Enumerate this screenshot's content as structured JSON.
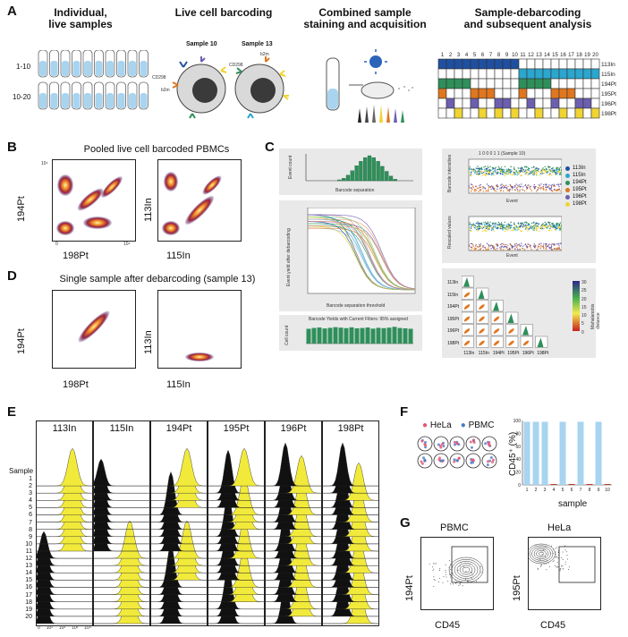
{
  "panels": {
    "A": "A",
    "B": "B",
    "C": "C",
    "D": "D",
    "E": "E",
    "F": "F",
    "G": "G"
  },
  "panel_a": {
    "titles": [
      "Individual,\nlive samples",
      "Live cell barcoding",
      "Combined sample\nstaining and acquisition",
      "Sample-debarcoding\nand subsequent analysis"
    ],
    "row_labels": [
      "1-10",
      "10-20"
    ],
    "sample_labels": [
      "Sample 10",
      "Sample 13"
    ],
    "marker_labels": {
      "cd298": "CD298",
      "b2m": "b2m"
    },
    "grid_columns": [
      "1",
      "2",
      "3",
      "4",
      "5",
      "6",
      "7",
      "8",
      "9",
      "10",
      "11",
      "12",
      "13",
      "14",
      "15",
      "16",
      "17",
      "18",
      "19",
      "20"
    ],
    "grid_rows": [
      "113In",
      "115In",
      "194Pt",
      "195Pt",
      "196Pt",
      "198Pt"
    ],
    "colors": {
      "blue": "#1f4fa0",
      "cyan": "#2ba6cf",
      "green": "#2f8f5a",
      "orange": "#e0761f",
      "purple": "#6c5fb0",
      "yellow": "#f0d431"
    }
  },
  "panel_b": {
    "title": "Pooled live cell barcoded PBMCs",
    "xlabels": [
      "198Pt",
      "115In"
    ],
    "ylabels": [
      "194Pt",
      "113In"
    ],
    "ticks": [
      "0",
      "10¹",
      "10²",
      "10³",
      "10⁴"
    ]
  },
  "panel_c": {
    "top_chart": {
      "ylabel": "Event count",
      "xlabel": "Barcode separation",
      "yticks": [
        "0",
        "2000",
        "4000",
        "6000",
        "8000"
      ],
      "xticks": [
        "0",
        "0.1",
        "0.2",
        "0.3",
        "0.4",
        "0.5",
        "0.6",
        "0.7",
        "0.8",
        "0.9",
        "1"
      ]
    },
    "mid_chart": {
      "ylabel": "Event yield after debarcoding",
      "xlabel": "Barcode separation threshold",
      "yticks": [
        "0",
        "10000",
        "20000",
        "30000",
        "40000",
        "50000",
        "60000",
        "70000",
        "80000",
        "90000",
        "100000",
        "110000",
        "120000"
      ]
    },
    "bottom_chart": {
      "title": "Barcode Yields with Current Filters: 95% assigned",
      "ylabel": "Cell count",
      "yticks": [
        "0",
        "5000",
        "10000"
      ]
    },
    "intensity_chart": {
      "title": "1 0 0 0 1 1 (Sample 10)",
      "ylabel": "Barcode intensities",
      "xlabel": "Event",
      "yticks": [
        "0",
        "500",
        "1000",
        "1500"
      ]
    },
    "rescaled_chart": {
      "ylabel": "Rescaled values",
      "xlabel": "Event",
      "yticks": [
        "0",
        "0.2",
        "0.4",
        "0.6",
        "0.8",
        "1",
        "1.2"
      ]
    },
    "legend": [
      "113In",
      "115In",
      "194Pt",
      "195Pt",
      "196Pt",
      "198Pt"
    ],
    "matrix_rows": [
      "113In",
      "115In",
      "194Pt",
      "195Pt",
      "196Pt",
      "198Pt"
    ],
    "matrix_cols": [
      "113In",
      "115In",
      "194Pt",
      "195Pt",
      "196Pt",
      "198Pt"
    ],
    "colorbar": {
      "label": "Mahalanobis distance",
      "ticks": [
        "30",
        "25",
        "20",
        "15",
        "10",
        "5",
        "0"
      ]
    }
  },
  "panel_d": {
    "title": "Single sample after debarcoding (sample 13)",
    "xlabels": [
      "198Pt",
      "115In"
    ],
    "ylabels": [
      "194Pt",
      "113In"
    ]
  },
  "panel_e": {
    "channels": [
      "113In",
      "115In",
      "194Pt",
      "195Pt",
      "196Pt",
      "198Pt"
    ],
    "sample_header": "Sample",
    "samples": [
      "1",
      "2",
      "3",
      "4",
      "5",
      "6",
      "7",
      "8",
      "9",
      "10",
      "11",
      "12",
      "13",
      "14",
      "15",
      "16",
      "17",
      "18",
      "19",
      "20"
    ],
    "xticks": [
      "0",
      "10¹",
      "10²",
      "10³",
      "10⁴"
    ]
  },
  "panel_f": {
    "legend": [
      "HeLa",
      "PBMC"
    ],
    "ylabel": "CD45⁺ (%)",
    "xlabel": "sample",
    "yticks": [
      "0",
      "20",
      "40",
      "60",
      "80",
      "100"
    ],
    "xticks": [
      "1",
      "2",
      "3",
      "4",
      "5",
      "6",
      "7",
      "8",
      "9",
      "10"
    ],
    "bar_color": "#a8d4ef"
  },
  "panel_g": {
    "titles": [
      "PBMC",
      "HeLa"
    ],
    "ylabels": [
      "194Pt",
      "195Pt"
    ],
    "xlabel": "CD45",
    "yticks": [
      "10⁴",
      "10³",
      "10²",
      "10¹",
      "0"
    ],
    "xticks": [
      "0",
      "10¹",
      "10²",
      "10³",
      "10⁴"
    ]
  },
  "chart_data": [
    {
      "type": "bar",
      "panel": "C-top",
      "title": "",
      "xlabel": "Barcode separation",
      "ylabel": "Event count",
      "ylim": [
        0,
        8000
      ],
      "x": [
        0.32,
        0.36,
        0.4,
        0.44,
        0.48,
        0.52,
        0.56,
        0.6,
        0.64,
        0.68,
        0.72,
        0.76,
        0.8,
        0.84
      ],
      "values": [
        300,
        800,
        1800,
        3200,
        4800,
        6200,
        7400,
        8000,
        7400,
        6200,
        4600,
        3000,
        1500,
        500
      ]
    },
    {
      "type": "bar",
      "panel": "C-bottom",
      "title": "Barcode Yields with Current Filters: 95% assigned",
      "ylabel": "Cell count",
      "ylim": [
        0,
        12000
      ],
      "categories": [
        "1",
        "2",
        "3",
        "4",
        "5",
        "6",
        "7",
        "8",
        "9",
        "10",
        "11",
        "12",
        "13",
        "14",
        "15",
        "16",
        "17",
        "18",
        "19",
        "20"
      ],
      "values": [
        9000,
        9500,
        9800,
        9200,
        9600,
        10000,
        9700,
        9400,
        9900,
        9300,
        9500,
        9800,
        9100,
        9600,
        9400,
        9700,
        10200,
        9500,
        9300,
        9000
      ]
    },
    {
      "type": "bar",
      "panel": "F",
      "xlabel": "sample",
      "ylabel": "CD45⁺ (%)",
      "ylim": [
        0,
        100
      ],
      "categories": [
        "1",
        "2",
        "3",
        "4",
        "5",
        "6",
        "7",
        "8",
        "9",
        "10"
      ],
      "series": [
        {
          "name": "PBMC",
          "values": [
            98,
            98,
            98,
            0,
            98,
            0,
            98,
            0,
            98,
            0
          ]
        },
        {
          "name": "HeLa",
          "values": [
            0,
            0,
            0,
            1,
            0,
            1,
            0,
            1,
            0,
            1
          ]
        }
      ]
    }
  ]
}
